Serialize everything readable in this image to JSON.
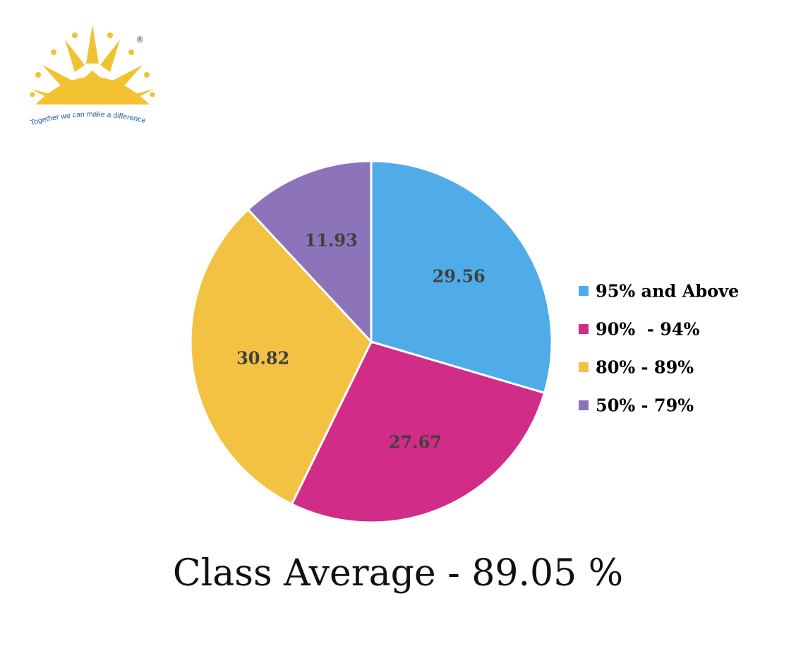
{
  "logo": {
    "tagline": "Together we can make a difference",
    "registered_mark": "®",
    "color": "#F2C230",
    "tagline_color": "#1F5FA8"
  },
  "chart_data": {
    "type": "pie",
    "categories": [
      "95% and Above",
      "90%  - 94%",
      "80% - 89%",
      "50% - 79%"
    ],
    "values": [
      29.56,
      27.67,
      30.82,
      11.93
    ],
    "value_labels": [
      "29.56",
      "27.67",
      "30.82",
      "11.93"
    ],
    "colors": [
      "#50ACE8",
      "#D12C88",
      "#F4C242",
      "#8D74BA"
    ],
    "legend_position": "right",
    "title": ""
  },
  "caption": "Class Average - 89.05 %"
}
